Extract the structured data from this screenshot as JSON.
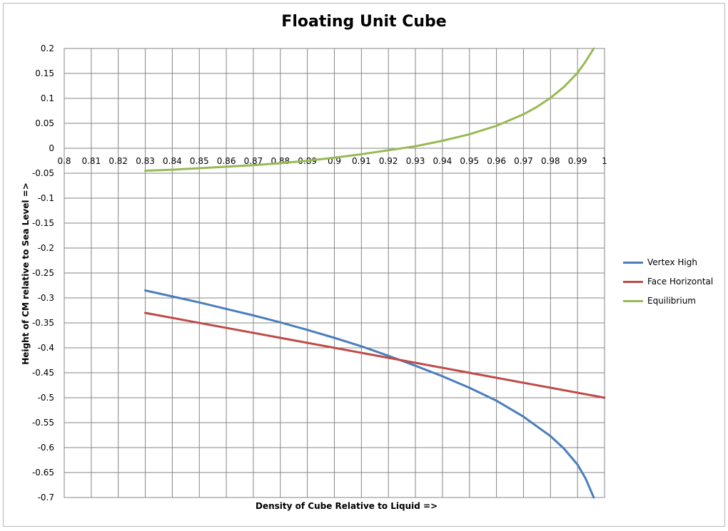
{
  "chart_data": {
    "type": "line",
    "title": "Floating Unit Cube",
    "xlabel": "Density of Cube Relative to Liquid =>",
    "ylabel": "Height of CM relative to Sea Level =>",
    "xlim": [
      0.8,
      1.0
    ],
    "ylim": [
      -0.7,
      0.2
    ],
    "x_ticks": [
      "0.8",
      "0.81",
      "0.82",
      "0.83",
      "0.84",
      "0.85",
      "0.86",
      "0.87",
      "0.88",
      "0.89",
      "0.9",
      "0.91",
      "0.92",
      "0.93",
      "0.94",
      "0.95",
      "0.96",
      "0.97",
      "0.98",
      "0.99",
      "1"
    ],
    "y_ticks": [
      "0.2",
      "0.15",
      "0.1",
      "0.05",
      "0",
      "-0.05",
      "-0.1",
      "-0.15",
      "-0.2",
      "-0.25",
      "-0.3",
      "-0.35",
      "-0.4",
      "-0.45",
      "-0.5",
      "-0.55",
      "-0.6",
      "-0.65",
      "-0.7"
    ],
    "grid": true,
    "legend_position": "right",
    "series": [
      {
        "name": "Vertex High",
        "color": "#4a7ebb",
        "x": [
          0.83,
          0.84,
          0.85,
          0.86,
          0.87,
          0.88,
          0.89,
          0.9,
          0.91,
          0.92,
          0.93,
          0.94,
          0.95,
          0.96,
          0.97,
          0.98,
          0.985,
          0.99,
          0.993,
          0.996
        ],
        "y": [
          -0.285,
          -0.297,
          -0.309,
          -0.322,
          -0.335,
          -0.349,
          -0.364,
          -0.38,
          -0.397,
          -0.416,
          -0.436,
          -0.457,
          -0.48,
          -0.506,
          -0.538,
          -0.577,
          -0.602,
          -0.634,
          -0.662,
          -0.7
        ]
      },
      {
        "name": "Face Horizontal",
        "color": "#be4b48",
        "x": [
          0.83,
          1.0
        ],
        "y": [
          -0.33,
          -0.5
        ]
      },
      {
        "name": "Equilibrium",
        "color": "#98b954",
        "x": [
          0.83,
          0.84,
          0.85,
          0.86,
          0.87,
          0.88,
          0.89,
          0.9,
          0.91,
          0.92,
          0.93,
          0.94,
          0.95,
          0.96,
          0.97,
          0.975,
          0.98,
          0.985,
          0.99,
          0.993,
          0.996
        ],
        "y": [
          -0.045,
          -0.043,
          -0.04,
          -0.037,
          -0.034,
          -0.03,
          -0.025,
          -0.019,
          -0.012,
          -0.004,
          0.004,
          0.015,
          0.028,
          0.045,
          0.068,
          0.083,
          0.101,
          0.123,
          0.151,
          0.174,
          0.2
        ]
      }
    ]
  }
}
